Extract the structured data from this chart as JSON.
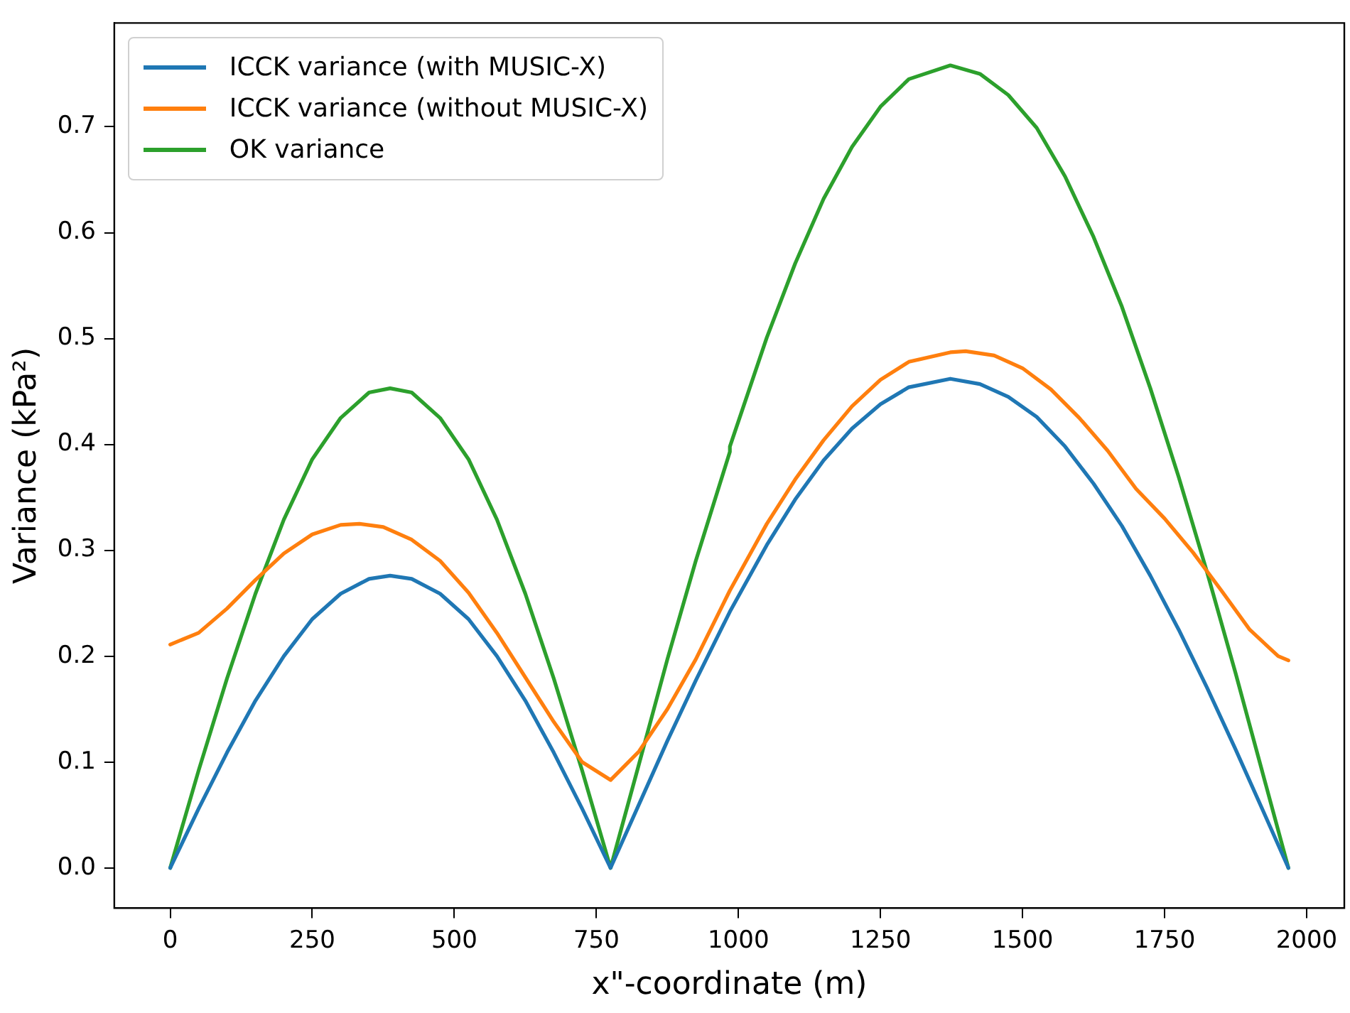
{
  "chart_data": {
    "type": "line",
    "xlabel": "x\"-coordinate (m)",
    "ylabel": "Variance (kPa²)",
    "xlim": [
      -98.4,
      2066.4
    ],
    "ylim": [
      -0.038,
      0.798
    ],
    "xticks": [
      0,
      250,
      500,
      750,
      1000,
      1250,
      1500,
      1750,
      2000
    ],
    "yticks": [
      {
        "value": 0,
        "label": "0.0"
      },
      {
        "value": 0.1,
        "label": "0.1"
      },
      {
        "value": 0.2,
        "label": "0.2"
      },
      {
        "value": 0.3,
        "label": "0.3"
      },
      {
        "value": 0.4,
        "label": "0.4"
      },
      {
        "value": 0.5,
        "label": "0.5"
      },
      {
        "value": 0.6,
        "label": "0.6"
      },
      {
        "value": 0.7,
        "label": "0.7"
      }
    ],
    "grid": false,
    "legend": "top left",
    "marker": "none",
    "line_style": "solid",
    "series": [
      {
        "name": "ICCK variance (with MUSIC-X)",
        "color": "#1f77b4",
        "x": [
          0,
          50,
          100,
          150,
          200,
          250,
          300,
          350,
          387,
          425,
          475,
          525,
          575,
          625,
          675,
          725,
          775,
          825,
          875,
          925,
          985,
          1050,
          1100,
          1150,
          1200,
          1250,
          1300,
          1373,
          1425,
          1475,
          1525,
          1575,
          1625,
          1675,
          1725,
          1775,
          1825,
          1875,
          1925,
          1968
        ],
        "values": [
          0,
          0.056,
          0.109,
          0.158,
          0.2,
          0.235,
          0.259,
          0.273,
          0.276,
          0.273,
          0.259,
          0.235,
          0.2,
          0.158,
          0.109,
          0.056,
          0,
          0.06,
          0.12,
          0.177,
          0.242,
          0.305,
          0.348,
          0.385,
          0.415,
          0.438,
          0.454,
          0.462,
          0.457,
          0.445,
          0.426,
          0.398,
          0.363,
          0.323,
          0.276,
          0.225,
          0.17,
          0.112,
          0.052,
          0
        ]
      },
      {
        "name": "ICCK variance (without MUSIC-X)",
        "color": "#ff7f0e",
        "x": [
          0,
          50,
          100,
          150,
          200,
          250,
          300,
          333,
          375,
          425,
          475,
          525,
          575,
          625,
          675,
          725,
          775,
          825,
          875,
          925,
          985,
          1050,
          1100,
          1150,
          1200,
          1250,
          1300,
          1373,
          1400,
          1450,
          1500,
          1550,
          1600,
          1650,
          1700,
          1750,
          1800,
          1850,
          1900,
          1950,
          1968
        ],
        "values": [
          0.211,
          0.222,
          0.245,
          0.272,
          0.297,
          0.315,
          0.324,
          0.325,
          0.322,
          0.31,
          0.29,
          0.26,
          0.222,
          0.18,
          0.138,
          0.1,
          0.083,
          0.11,
          0.15,
          0.197,
          0.262,
          0.325,
          0.367,
          0.404,
          0.436,
          0.461,
          0.478,
          0.487,
          0.488,
          0.484,
          0.472,
          0.452,
          0.425,
          0.394,
          0.358,
          0.33,
          0.298,
          0.262,
          0.225,
          0.2,
          0.196
        ]
      },
      {
        "name": "OK variance",
        "color": "#2ca02c",
        "x": [
          0,
          50,
          100,
          150,
          200,
          250,
          300,
          350,
          387,
          425,
          475,
          525,
          575,
          625,
          675,
          725,
          775,
          825,
          875,
          925,
          985,
          985,
          1050,
          1100,
          1150,
          1200,
          1250,
          1300,
          1373,
          1425,
          1475,
          1525,
          1575,
          1625,
          1675,
          1725,
          1775,
          1825,
          1875,
          1925,
          1968
        ],
        "values": [
          0,
          0.092,
          0.179,
          0.259,
          0.329,
          0.386,
          0.425,
          0.449,
          0.453,
          0.449,
          0.425,
          0.386,
          0.329,
          0.259,
          0.179,
          0.092,
          0,
          0.098,
          0.197,
          0.29,
          0.393,
          0.398,
          0.501,
          0.571,
          0.632,
          0.681,
          0.719,
          0.745,
          0.758,
          0.75,
          0.73,
          0.699,
          0.653,
          0.596,
          0.53,
          0.453,
          0.369,
          0.279,
          0.184,
          0.085,
          0
        ]
      }
    ]
  }
}
